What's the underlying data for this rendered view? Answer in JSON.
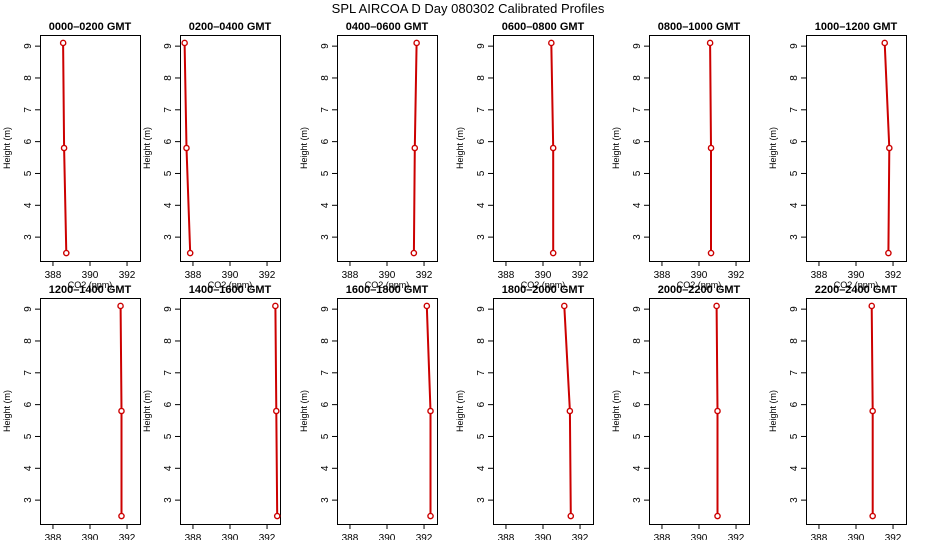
{
  "title": "SPL AIRCOA D  Day 080302  Calibrated Profiles",
  "chart_data": {
    "type": "line",
    "xlabel": "CO2 (ppm)",
    "ylabel": "Height (m)",
    "xlim": [
      387.3,
      392.7
    ],
    "ylim": [
      2.25,
      9.35
    ],
    "xticks": [
      388,
      390,
      392
    ],
    "yticks": [
      3,
      4,
      5,
      6,
      7,
      8,
      9
    ],
    "grid": false,
    "line_color": "#cc0000",
    "marker": "circle",
    "panels": [
      {
        "title": "0000–0200 GMT",
        "points": [
          {
            "x": 388.72,
            "y": 2.5
          },
          {
            "x": 388.6,
            "y": 5.8
          },
          {
            "x": 388.55,
            "y": 9.1
          }
        ]
      },
      {
        "title": "0200–0400 GMT",
        "points": [
          {
            "x": 387.85,
            "y": 2.5
          },
          {
            "x": 387.65,
            "y": 5.8
          },
          {
            "x": 387.55,
            "y": 9.1
          }
        ]
      },
      {
        "title": "0400–0600 GMT",
        "points": [
          {
            "x": 391.45,
            "y": 2.5
          },
          {
            "x": 391.5,
            "y": 5.8
          },
          {
            "x": 391.6,
            "y": 9.1
          }
        ]
      },
      {
        "title": "0600–0800 GMT",
        "points": [
          {
            "x": 390.55,
            "y": 2.5
          },
          {
            "x": 390.55,
            "y": 5.8
          },
          {
            "x": 390.45,
            "y": 9.1
          }
        ]
      },
      {
        "title": "0800–1000 GMT",
        "points": [
          {
            "x": 390.65,
            "y": 2.5
          },
          {
            "x": 390.65,
            "y": 5.8
          },
          {
            "x": 390.6,
            "y": 9.1
          }
        ]
      },
      {
        "title": "1000–1200 GMT",
        "points": [
          {
            "x": 391.75,
            "y": 2.5
          },
          {
            "x": 391.8,
            "y": 5.8
          },
          {
            "x": 391.55,
            "y": 9.1
          }
        ]
      },
      {
        "title": "1200–1400 GMT",
        "points": [
          {
            "x": 391.7,
            "y": 2.5
          },
          {
            "x": 391.7,
            "y": 5.8
          },
          {
            "x": 391.65,
            "y": 9.1
          }
        ]
      },
      {
        "title": "1400–1600 GMT",
        "points": [
          {
            "x": 392.55,
            "y": 2.5
          },
          {
            "x": 392.5,
            "y": 5.8
          },
          {
            "x": 392.45,
            "y": 9.1
          }
        ]
      },
      {
        "title": "1600–1800 GMT",
        "points": [
          {
            "x": 392.35,
            "y": 2.5
          },
          {
            "x": 392.35,
            "y": 5.8
          },
          {
            "x": 392.15,
            "y": 9.1
          }
        ]
      },
      {
        "title": "1800–2000 GMT",
        "points": [
          {
            "x": 391.5,
            "y": 2.5
          },
          {
            "x": 391.45,
            "y": 5.8
          },
          {
            "x": 391.15,
            "y": 9.1
          }
        ]
      },
      {
        "title": "2000–2200 GMT",
        "points": [
          {
            "x": 391.0,
            "y": 2.5
          },
          {
            "x": 391.0,
            "y": 5.8
          },
          {
            "x": 390.95,
            "y": 9.1
          }
        ]
      },
      {
        "title": "2200–2400 GMT",
        "points": [
          {
            "x": 390.9,
            "y": 2.5
          },
          {
            "x": 390.9,
            "y": 5.8
          },
          {
            "x": 390.85,
            "y": 9.1
          }
        ]
      }
    ]
  }
}
